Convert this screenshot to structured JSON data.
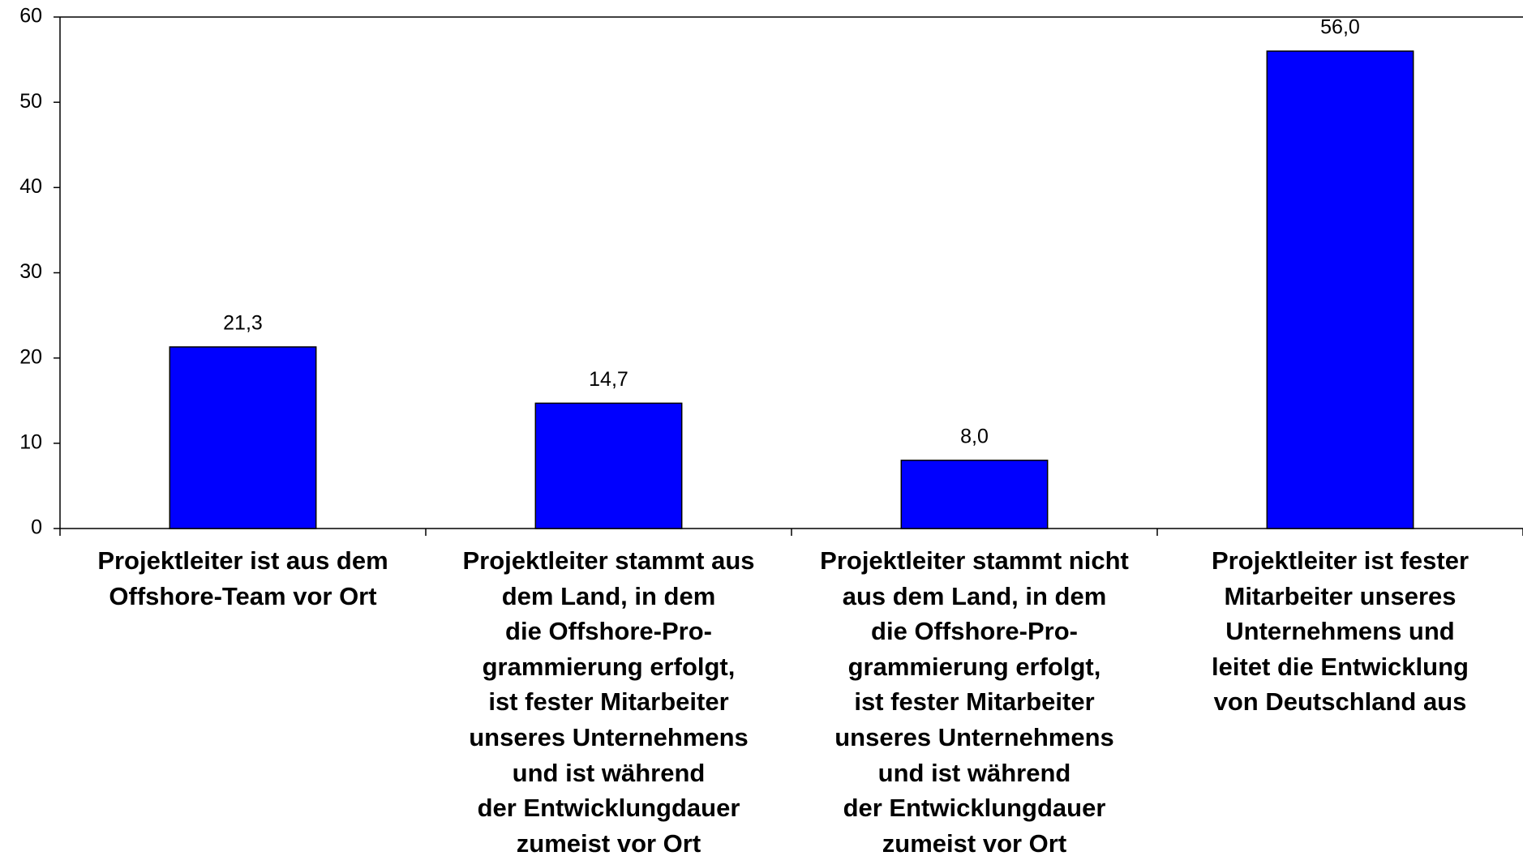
{
  "chart_data": {
    "type": "bar",
    "categories": [
      "Projektleiter ist aus dem\nOffshore-Team vor Ort",
      "Projektleiter stammt aus\ndem Land, in dem\ndie Offshore-Pro-\ngrammierung erfolgt,\nist fester Mitarbeiter\nunseres Unternehmens\nund ist während\nder Entwicklungdauer\nzumeist vor Ort",
      "Projektleiter stammt nicht\naus dem Land, in dem\ndie Offshore-Pro-\ngrammierung erfolgt,\nist fester Mitarbeiter\nunseres Unternehmens\nund ist während\nder Entwicklungdauer\nzumeist vor Ort",
      "Projektleiter ist fester\nMitarbeiter unseres\nUnternehmens und\nleitet die Entwicklung\nvon Deutschland aus"
    ],
    "values": [
      21.3,
      14.7,
      8.0,
      56.0
    ],
    "value_labels": [
      "21,3",
      "14,7",
      "8,0",
      "56,0"
    ],
    "color": "#0000ff",
    "ylim": [
      0,
      60
    ],
    "yticks": [
      0,
      10,
      20,
      30,
      40,
      50,
      60
    ],
    "grid": false
  }
}
